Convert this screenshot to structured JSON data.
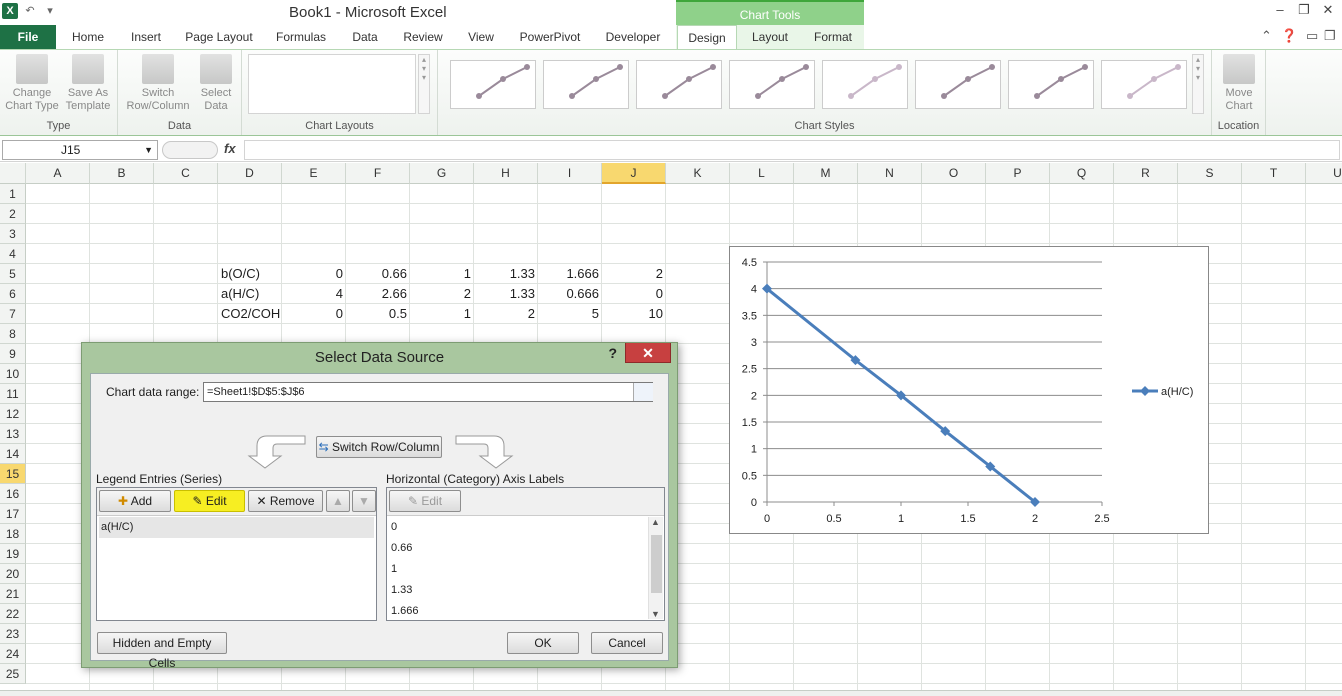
{
  "window": {
    "title": "Book1  -  Microsoft Excel",
    "context_header": "Chart Tools"
  },
  "tabs": [
    {
      "label": "File",
      "x": 0
    },
    {
      "label": "Home"
    },
    {
      "label": "Insert"
    },
    {
      "label": "Page Layout"
    },
    {
      "label": "Formulas"
    },
    {
      "label": "Data"
    },
    {
      "label": "Review"
    },
    {
      "label": "View"
    },
    {
      "label": "PowerPivot"
    },
    {
      "label": "Developer"
    },
    {
      "label": "Design"
    },
    {
      "label": "Layout"
    },
    {
      "label": "Format"
    }
  ],
  "ribbon": {
    "type_group": {
      "label": "Type",
      "change_chart_type": "Change Chart Type",
      "save_as_template": "Save As Template"
    },
    "data_group": {
      "label": "Data",
      "switch": "Switch Row/Column",
      "select_data": "Select Data"
    },
    "layouts_group": {
      "label": "Chart Layouts"
    },
    "styles_group": {
      "label": "Chart Styles"
    },
    "location_group": {
      "label": "Location",
      "move_chart": "Move Chart"
    }
  },
  "formula_bar": {
    "name_box": "J15",
    "fx": "fx",
    "formula": ""
  },
  "columns": [
    "A",
    "B",
    "C",
    "D",
    "E",
    "F",
    "G",
    "H",
    "I",
    "J",
    "K",
    "L",
    "M",
    "N",
    "O",
    "P",
    "Q",
    "R",
    "S",
    "T",
    "U"
  ],
  "selected_column": "J",
  "rows": [
    "1",
    "2",
    "3",
    "4",
    "5",
    "6",
    "7",
    "8",
    "9",
    "10",
    "11",
    "12",
    "13",
    "14",
    "15",
    "16",
    "17",
    "18",
    "19",
    "20",
    "21",
    "22",
    "23",
    "24",
    "25"
  ],
  "selected_row": "15",
  "sheet": {
    "row5": {
      "label": "b(O/C)",
      "values": [
        "0",
        "0.66",
        "1",
        "1.33",
        "1.666",
        "2"
      ]
    },
    "row6": {
      "label": "a(H/C)",
      "values": [
        "4",
        "2.66",
        "2",
        "1.33",
        "0.666",
        "0"
      ]
    },
    "row7": {
      "label": "CO2/COH",
      "values": [
        "0",
        "0.5",
        "1",
        "2",
        "5",
        "10"
      ]
    }
  },
  "chart_data": {
    "type": "scatter",
    "series": [
      {
        "name": "a(H/C)",
        "x": [
          0,
          0.66,
          1,
          1.33,
          1.666,
          2
        ],
        "y": [
          4,
          2.66,
          2,
          1.33,
          0.666,
          0
        ],
        "color": "#4a7ebb"
      }
    ],
    "x_ticks": [
      "0",
      "0.5",
      "1",
      "1.5",
      "2",
      "2.5"
    ],
    "y_ticks": [
      "0",
      "0.5",
      "1",
      "1.5",
      "2",
      "2.5",
      "3",
      "3.5",
      "4",
      "4.5"
    ],
    "xlim": [
      0,
      2.5
    ],
    "ylim": [
      0,
      4.5
    ],
    "grid": "horizontal",
    "legend": "right"
  },
  "dialog": {
    "title": "Select Data Source",
    "help": "?",
    "close": "✕",
    "chart_range_label": "Chart data range:",
    "chart_range_value": "=Sheet1!$D$5:$J$6",
    "switch_button": "Switch Row/Column",
    "legend_label": "Legend Entries (Series)",
    "add": "Add",
    "edit": "Edit",
    "remove": "Remove",
    "series": [
      "a(H/C)"
    ],
    "axis_label": "Horizontal (Category) Axis Labels",
    "axis_edit": "Edit",
    "axis_items": [
      "0",
      "0.66",
      "1",
      "1.33",
      "1.666"
    ],
    "hidden_cells": "Hidden and Empty Cells",
    "ok": "OK",
    "cancel": "Cancel"
  }
}
